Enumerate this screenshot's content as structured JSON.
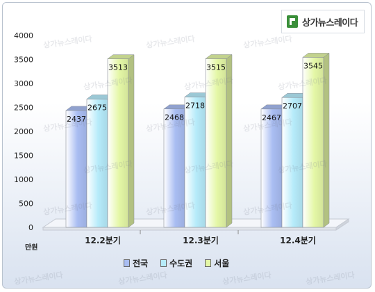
{
  "chart_data": {
    "type": "bar",
    "categories": [
      "12.2분기",
      "12.3분기",
      "12.4분기"
    ],
    "series": [
      {
        "name": "전국",
        "values": [
          2437,
          2468,
          2467
        ],
        "color": "#a9bdf2"
      },
      {
        "name": "수도권",
        "values": [
          2675,
          2718,
          2707
        ],
        "color": "#b6ebfa"
      },
      {
        "name": "서울",
        "values": [
          3513,
          3515,
          3545
        ],
        "color": "#e4f7a6"
      }
    ],
    "yticks": [
      "4000",
      "3500",
      "3000",
      "2500",
      "2000",
      "1500",
      "1000",
      "500",
      "0"
    ],
    "ylim": [
      0,
      4000
    ],
    "ylabel": "만원",
    "legend_position": "bottom",
    "grid": false
  },
  "brand": "상가뉴스레이다",
  "watermark": "상가뉴스레이다"
}
